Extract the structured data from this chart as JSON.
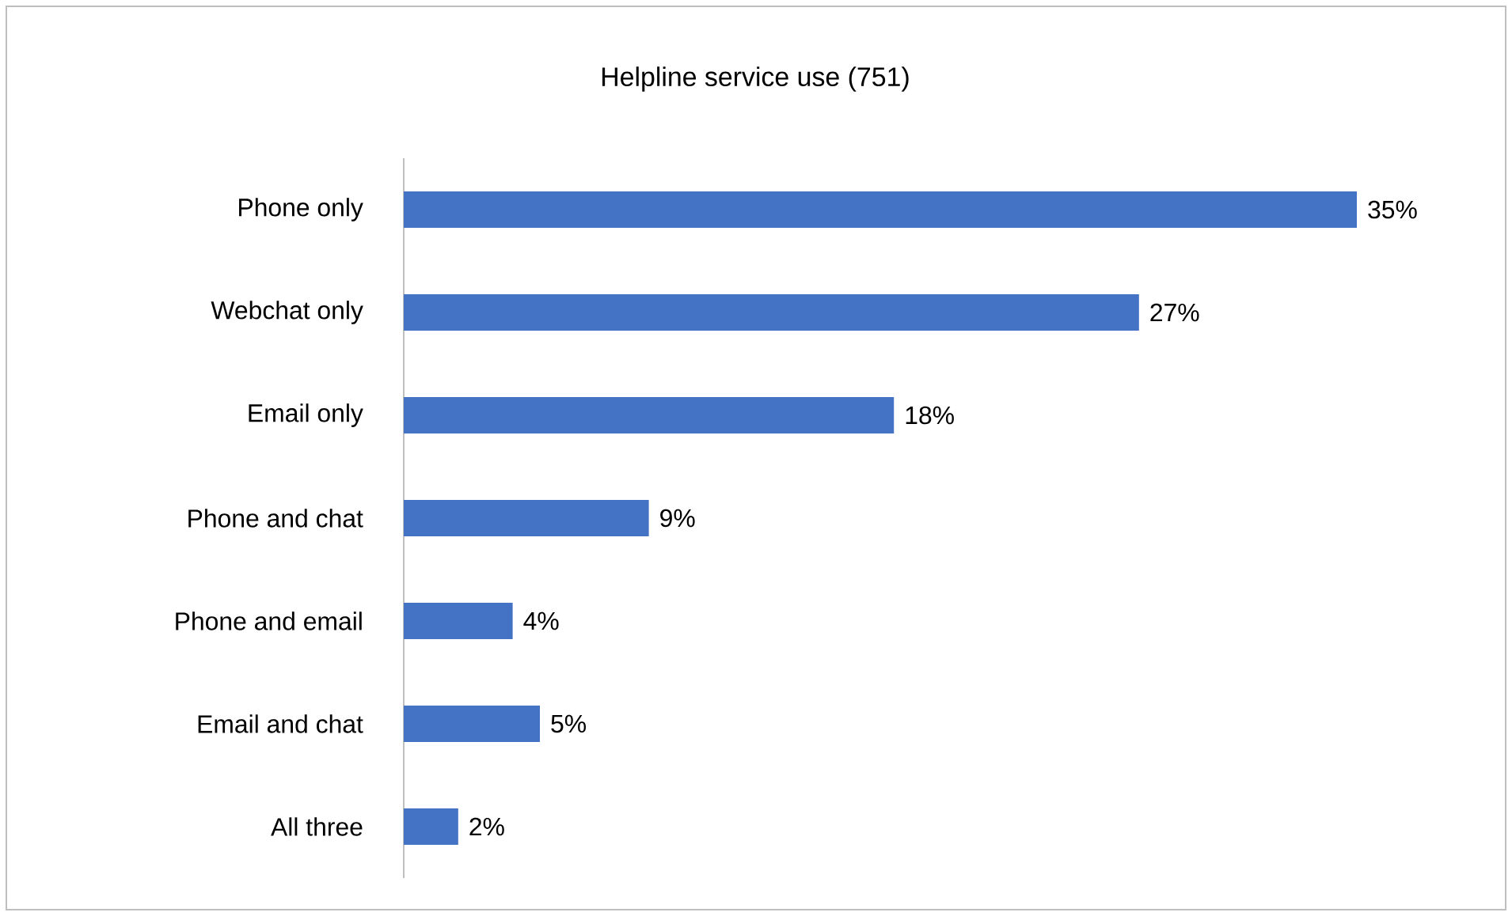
{
  "chart_data": {
    "type": "bar",
    "orientation": "horizontal",
    "title": "Helpline service use (751)",
    "categories": [
      "Phone only",
      "Webchat only",
      "Email only",
      "Phone and chat",
      "Phone and email",
      "Email and chat",
      "All three"
    ],
    "values": [
      35,
      27,
      18,
      9,
      4,
      5,
      2
    ],
    "value_labels": [
      "35%",
      "27%",
      "18%",
      "9%",
      "4%",
      "5%",
      "2%"
    ],
    "color": "#4472c4"
  }
}
